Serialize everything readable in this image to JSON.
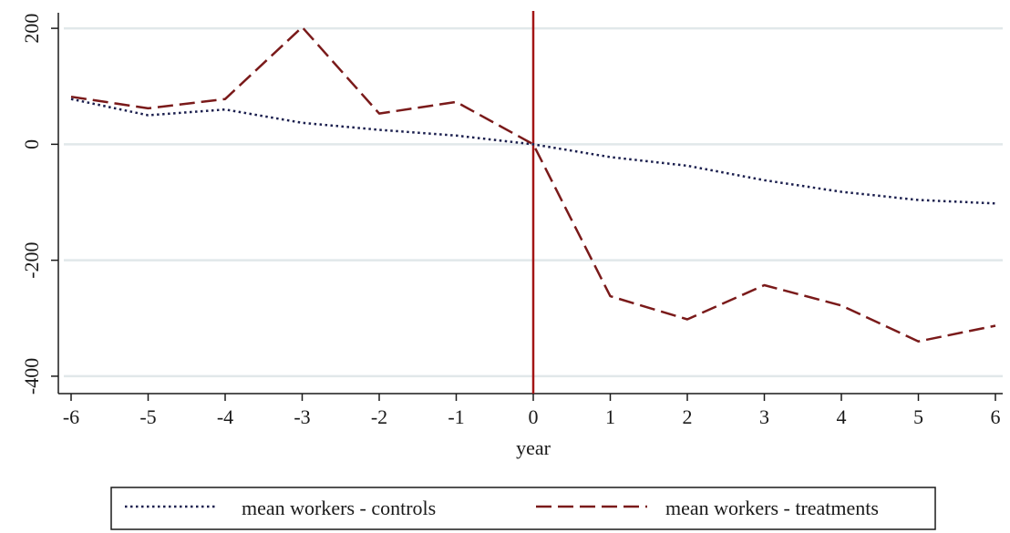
{
  "chart_data": {
    "type": "line",
    "title": "",
    "xlabel": "year",
    "ylabel": "",
    "x": [
      -6,
      -5,
      -4,
      -3,
      -2,
      -1,
      0,
      1,
      2,
      3,
      4,
      5,
      6
    ],
    "xticks": [
      "-6",
      "-5",
      "-4",
      "-3",
      "-2",
      "-1",
      "0",
      "1",
      "2",
      "3",
      "4",
      "5",
      "6"
    ],
    "xlim": [
      -6,
      6
    ],
    "yticks": [
      200,
      0,
      -200,
      -400
    ],
    "ytick_labels": [
      "200",
      "0",
      "-200",
      "-400"
    ],
    "ylim": [
      -430,
      230
    ],
    "grid": "horizontal",
    "legend_position": "bottom",
    "reference_line": {
      "x": 0,
      "color": "#a31515"
    },
    "series": [
      {
        "name": "mean workers - controls",
        "style": "dotted",
        "color": "#1b1f4e",
        "values": [
          78,
          50,
          60,
          37,
          25,
          15,
          0,
          -22,
          -37,
          -62,
          -82,
          -96,
          -102
        ]
      },
      {
        "name": "mean workers - treatments",
        "style": "dashed",
        "color": "#7a1a1a",
        "values": [
          82,
          62,
          78,
          202,
          53,
          73,
          0,
          -262,
          -302,
          -243,
          -278,
          -340,
          -313
        ]
      }
    ]
  }
}
